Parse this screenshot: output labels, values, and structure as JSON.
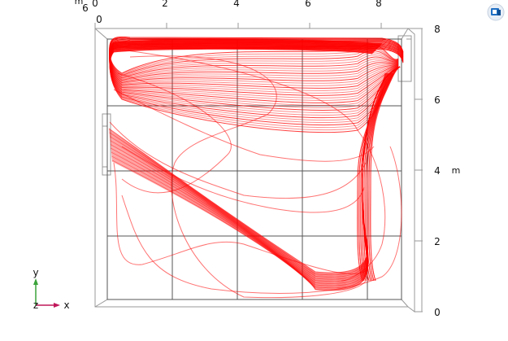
{
  "scene": {
    "x_axis_ticks": [
      "0",
      "2",
      "4",
      "6",
      "8"
    ],
    "right_axis_ticks": [
      "0",
      "2",
      "4",
      "6",
      "8"
    ],
    "right_axis_unit": "m",
    "top_left_labels": [
      "6",
      "m",
      "0"
    ],
    "triad": {
      "y": "y",
      "x": "x",
      "z": "z"
    },
    "stream_color": "#ff0000",
    "triad_colors": {
      "y": "#3aa33a",
      "x": "#c0185a"
    }
  },
  "toolbar": {
    "icon": "graphics-view-icon"
  }
}
